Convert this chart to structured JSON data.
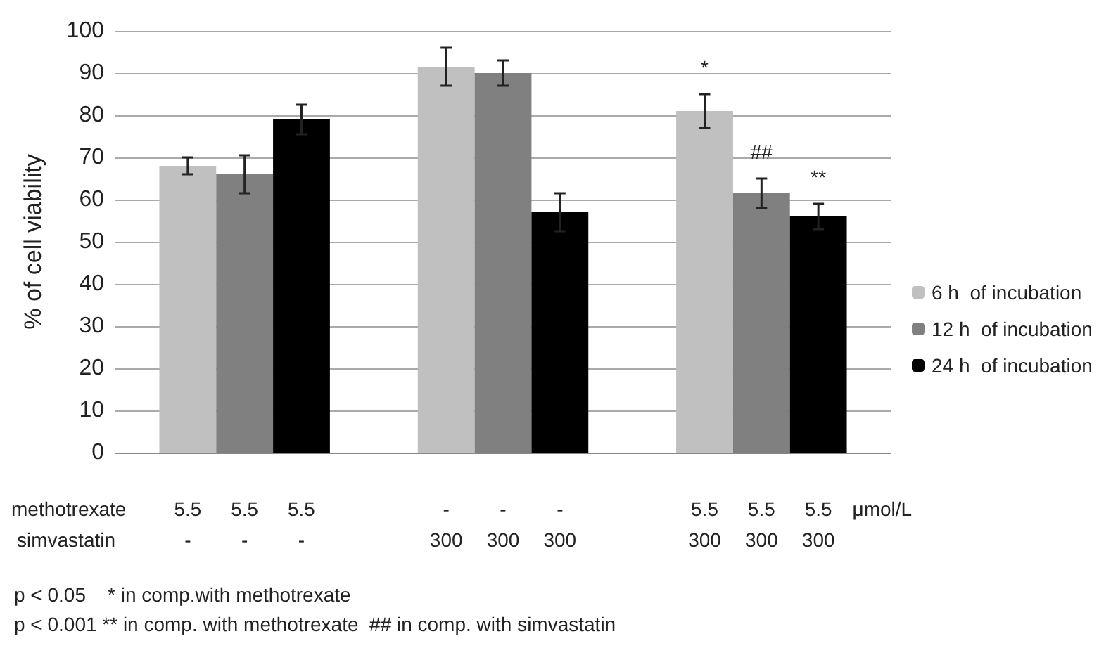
{
  "chart_data": {
    "type": "bar",
    "ylabel": "% of cell viability",
    "categories": [
      null,
      null,
      null
    ],
    "series": [
      {
        "name": "6 h  of incubation",
        "color": "#c0c0c0",
        "values": [
          68,
          91.5,
          81
        ],
        "errors": [
          2,
          4.5,
          4
        ],
        "value_labels": [
          null,
          null,
          "*"
        ]
      },
      {
        "name": "12 h  of incubation",
        "color": "#808080",
        "values": [
          66,
          90,
          61.5
        ],
        "errors": [
          4.5,
          3,
          3.5
        ],
        "value_labels": [
          null,
          null,
          "##"
        ]
      },
      {
        "name": "24 h  of incubation",
        "color": "#000000",
        "values": [
          79,
          57,
          56
        ],
        "errors": [
          3.5,
          4.5,
          3
        ],
        "value_labels": [
          null,
          null,
          "**"
        ]
      }
    ],
    "ylim": [
      0,
      100
    ],
    "yticks": [
      0,
      10,
      20,
      30,
      40,
      50,
      60,
      70,
      80,
      90,
      100
    ],
    "grid": "y",
    "legend": "right",
    "annotations": [
      "methotrexate",
      "simvastatin",
      "μmol/L",
      "5.5",
      "5.5",
      "5.5",
      "-",
      "-",
      "-",
      "5.5",
      "5.5",
      "5.5",
      "-",
      "-",
      "-",
      "300",
      "300",
      "300",
      "300",
      "300",
      "300",
      "p < 0.05    * in comp.with methotrexate",
      "p < 0.001 ** in comp. with methotrexate  ## in comp. with simvastatin"
    ]
  }
}
